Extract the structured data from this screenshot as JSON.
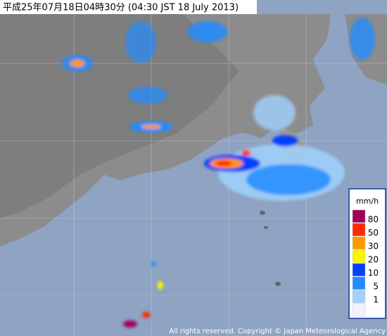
{
  "header": {
    "title": "平成25年07月18日04時30分 (04:30 JST 18 July 2013)"
  },
  "legend": {
    "unit": "mm/h",
    "colors": [
      "#a0005a",
      "#ff2800",
      "#ff9900",
      "#faf500",
      "#0041ff",
      "#218cff",
      "#a0d2ff",
      "#f2f2ff"
    ],
    "labels": [
      80,
      50,
      30,
      20,
      10,
      5,
      1
    ]
  },
  "footer": {
    "copyright": "All rights reserved. Copyright © Japan Meteorological Agency"
  }
}
